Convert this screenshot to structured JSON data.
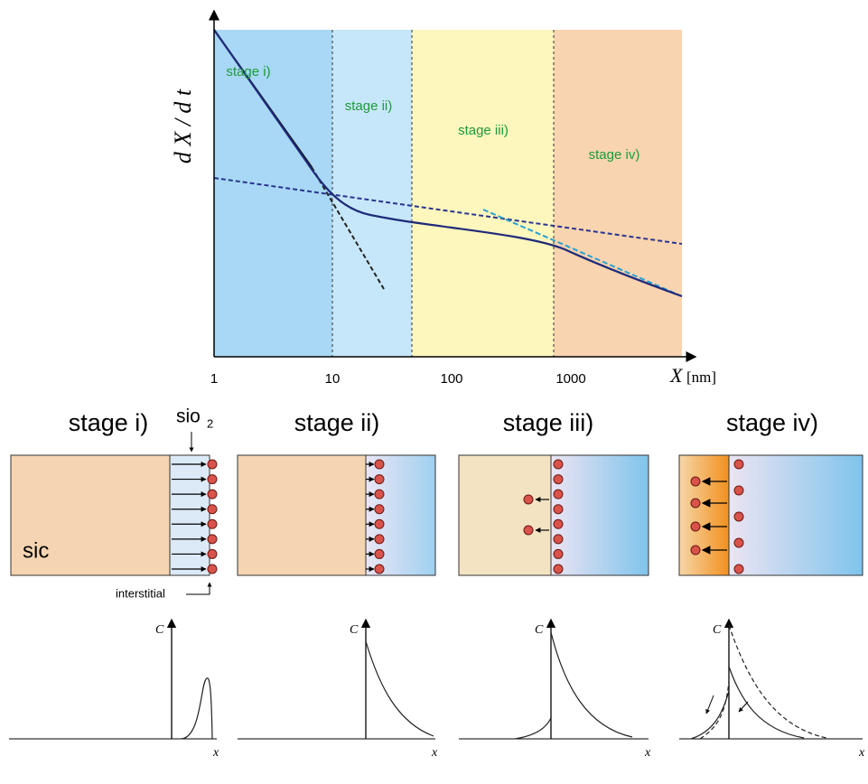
{
  "top_chart": {
    "y_label": "d X / d t",
    "x_label_var": "X",
    "x_label_unit": "[nm]",
    "x_tick_labels": [
      "1",
      "10",
      "100",
      "1000"
    ],
    "stage_labels": [
      "stage i)",
      "stage ii)",
      "stage iii)",
      "stage iv)"
    ]
  },
  "panels": [
    {
      "title": "stage i)"
    },
    {
      "title": "stage ii)"
    },
    {
      "title": "stage iii)"
    },
    {
      "title": "stage iv)"
    }
  ],
  "labels": {
    "sio2": "sio",
    "sio2_sub": "2",
    "sic": "sic",
    "interstitial": "interstitial",
    "c_axis": "C",
    "x_axis": "x"
  }
}
